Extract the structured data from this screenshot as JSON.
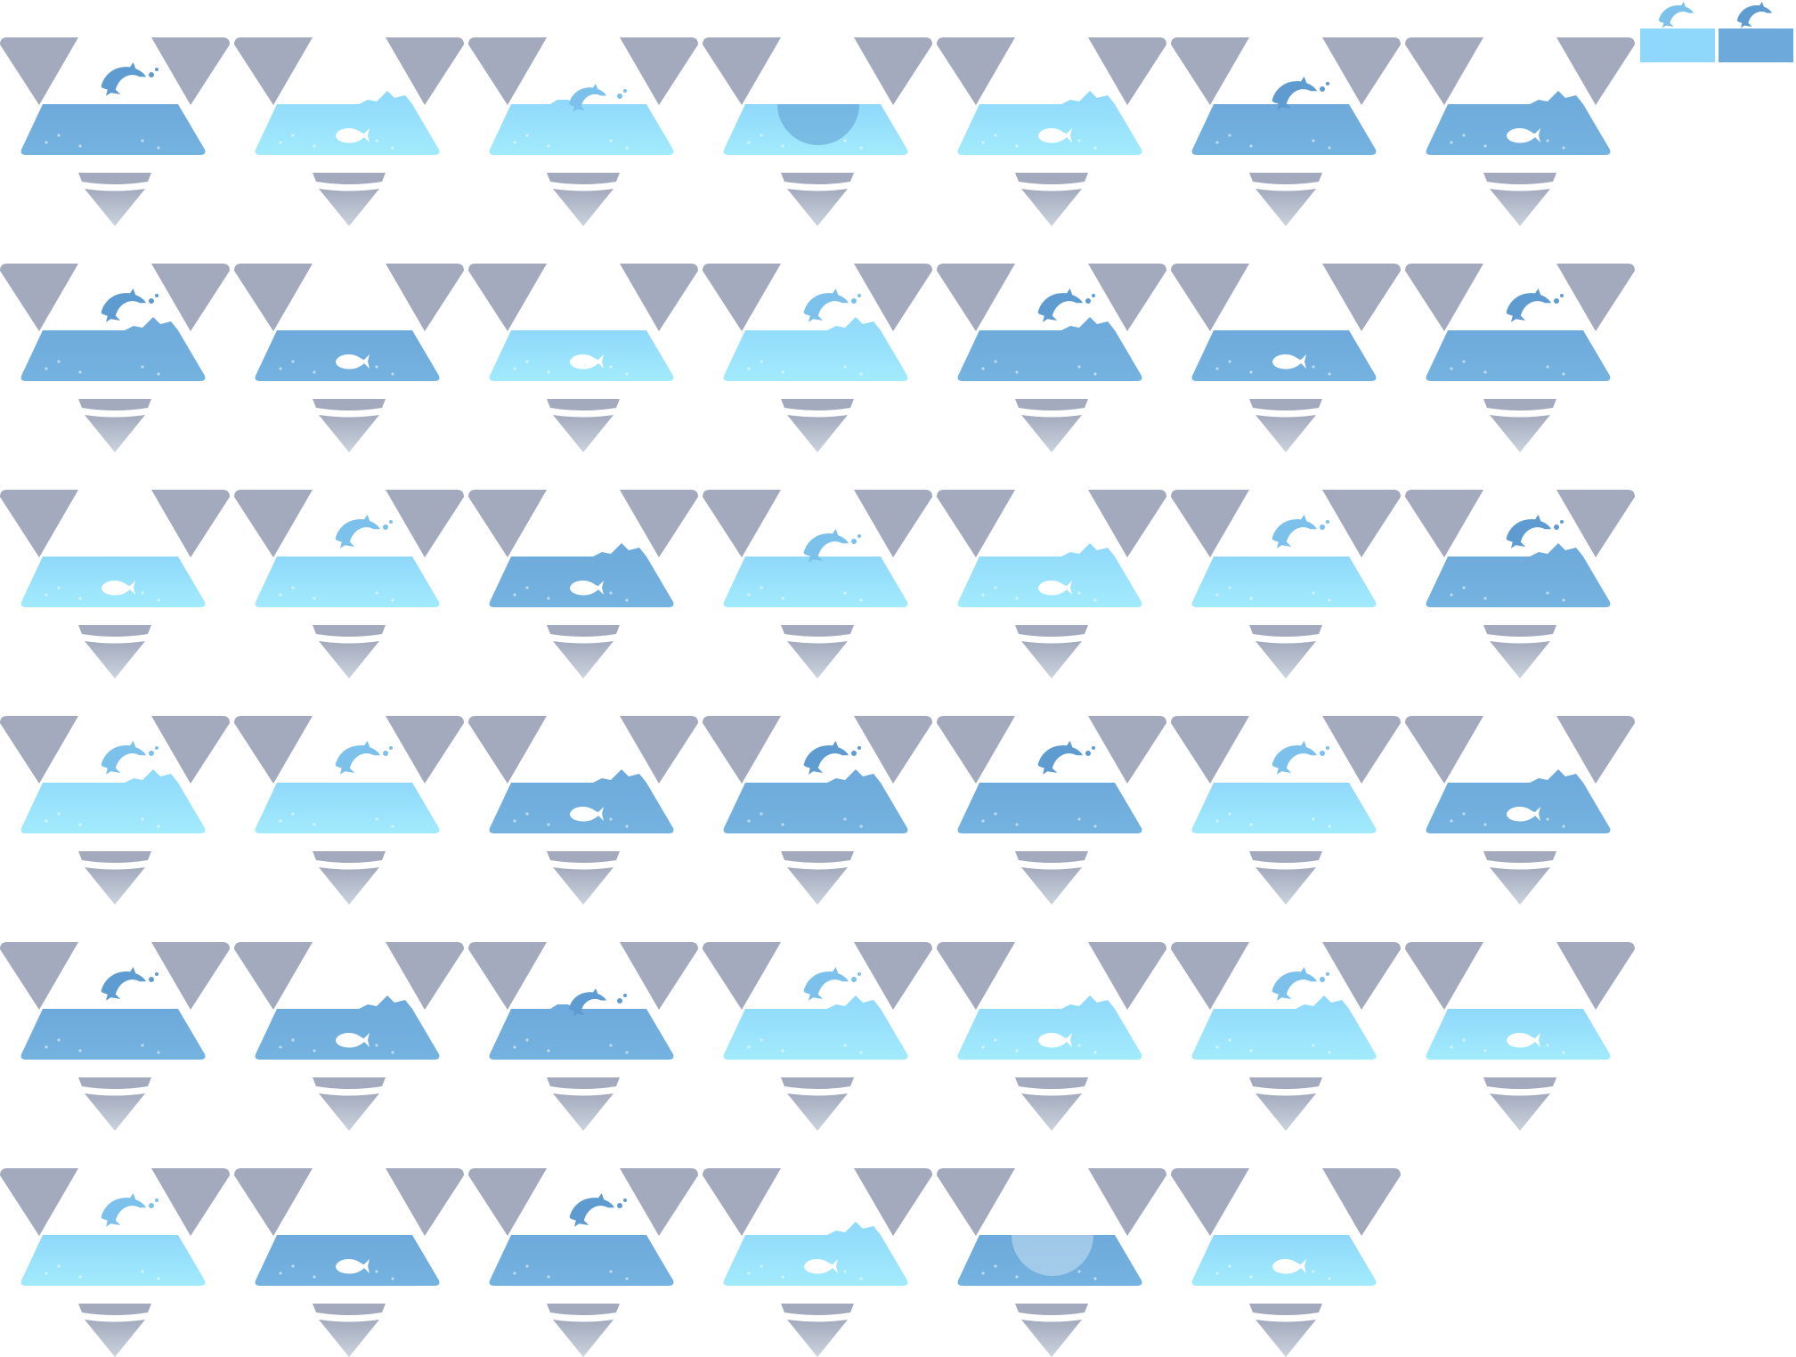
{
  "sprite_sheet": {
    "background": "#ffffff",
    "colors": {
      "triangle": "#a3aabd",
      "funnel": "#a3aabd",
      "funnel_light": "#cbd3de",
      "water_dark": "#6daadb",
      "water_light": "#8fd8fb",
      "water_light_bottom": "#a2ebfc",
      "dolphin_dark": "#5d9bd0",
      "dolphin_light": "#7bc1ec",
      "whale": "#ffffff"
    },
    "icons": [
      "triangle-pair-icon",
      "water-pool-icon",
      "dolphin-icon",
      "whale-icon",
      "funnel-icon"
    ],
    "rows": [
      [
        "dark-dolphin",
        "light-whale-splash",
        "light-dolphin-surface",
        "light-bubble-dive",
        "light-whale-splash",
        "dark-dolphin-dive",
        "dark-whale-splash"
      ],
      [
        "dark-dolphin-splash",
        "dark-whale",
        "light-whale",
        "light-dolphin-splash",
        "dark-dolphin-splash",
        "dark-whale",
        "dark-dolphin"
      ],
      [
        "light-whale",
        "light-dolphin",
        "dark-whale-splash",
        "light-dolphin-dive",
        "light-whale-splash",
        "light-dolphin",
        "dark-dolphin-splash"
      ],
      [
        "light-dolphin-splash",
        "light-dolphin",
        "dark-whale-splash",
        "dark-dolphin-splash",
        "dark-dolphin",
        "light-dolphin",
        "dark-whale-splash"
      ],
      [
        "dark-dolphin",
        "dark-whale-splash",
        "dark-dolphin-surface",
        "light-dolphin-splash",
        "light-whale-splash",
        "light-dolphin-splash",
        "light-whale"
      ],
      [
        "light-dolphin",
        "dark-whale",
        "dark-dolphin",
        "light-whale-splash",
        "dark-bubble-dive",
        "light-whale"
      ]
    ],
    "swatches": [
      {
        "name": "light",
        "color": "#8fd8fb"
      },
      {
        "name": "dark",
        "color": "#6daadb"
      }
    ]
  }
}
